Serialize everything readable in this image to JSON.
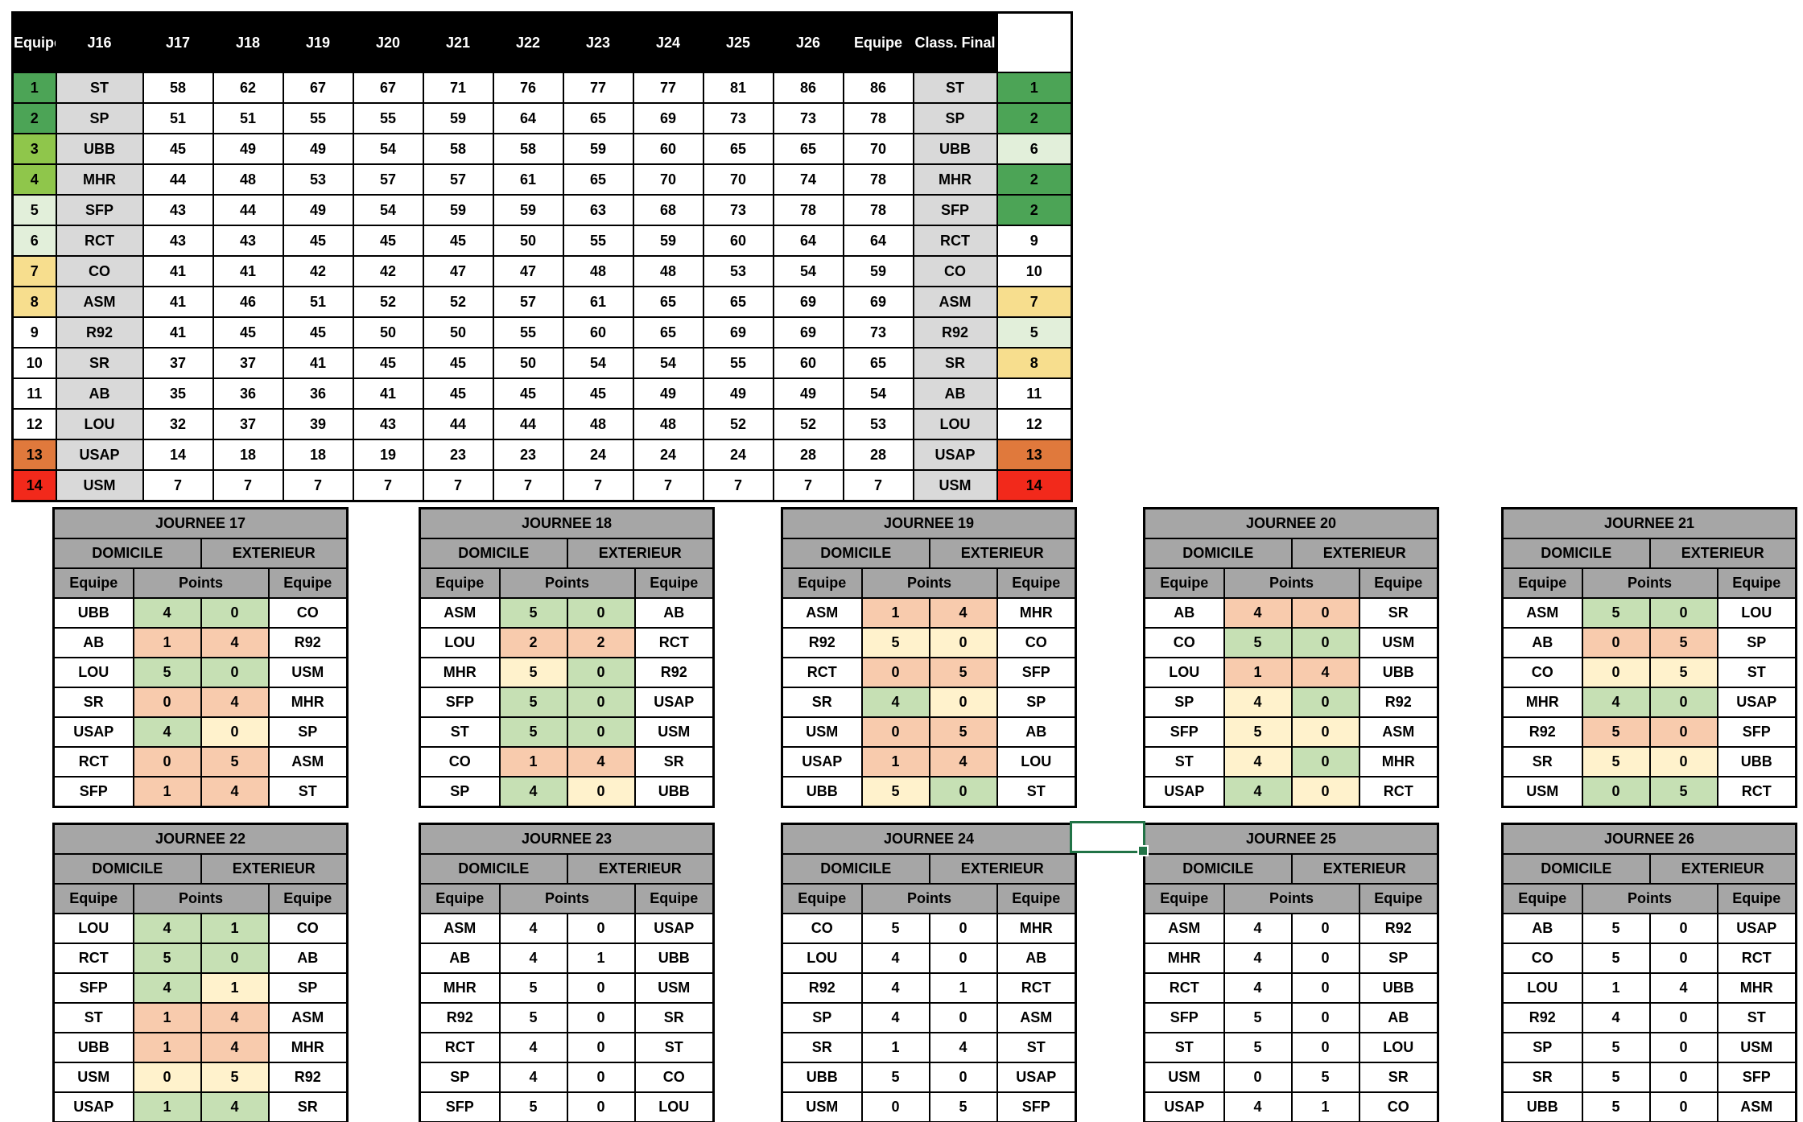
{
  "colors": {
    "rank_green": "#4CA456",
    "rank_lime": "#8FC64B",
    "rank_palegreen": "#E2EFDA",
    "rank_gold": "#F7DE8E",
    "rank_orange": "#E0793C",
    "rank_red": "#F2291B",
    "white": "#FFFFFF",
    "pts_green": "#C6E0B4",
    "pts_orange": "#F8CBAD",
    "pts_yellow": "#FFF2CC",
    "header_gray": "#A6A6A6",
    "team_gray": "#D9D9D9",
    "header_black": "#000000",
    "selection_green": "#217346"
  },
  "labels": {
    "domicile": "DOMICILE",
    "exterieur": "EXTERIEUR",
    "equipe": "Equipe",
    "points": "Points"
  },
  "main_table": {
    "header": [
      "Equipe",
      "J16",
      "J17",
      "J18",
      "J19",
      "J20",
      "J21",
      "J22",
      "J23",
      "J24",
      "J25",
      "J26",
      "Equipe",
      "Class. Final"
    ],
    "rows": [
      {
        "rank": "1",
        "team": "ST",
        "scores": [
          "58",
          "62",
          "67",
          "67",
          "71",
          "76",
          "77",
          "77",
          "81",
          "86",
          "86"
        ],
        "team2": "ST",
        "final": "1",
        "rank_color": "rank_green",
        "final_color": "rank_green"
      },
      {
        "rank": "2",
        "team": "SP",
        "scores": [
          "51",
          "51",
          "55",
          "55",
          "59",
          "64",
          "65",
          "69",
          "73",
          "73",
          "78"
        ],
        "team2": "SP",
        "final": "2",
        "rank_color": "rank_green",
        "final_color": "rank_green"
      },
      {
        "rank": "3",
        "team": "UBB",
        "scores": [
          "45",
          "49",
          "49",
          "54",
          "58",
          "58",
          "59",
          "60",
          "65",
          "65",
          "70"
        ],
        "team2": "UBB",
        "final": "6",
        "rank_color": "rank_lime",
        "final_color": "rank_palegreen"
      },
      {
        "rank": "4",
        "team": "MHR",
        "scores": [
          "44",
          "48",
          "53",
          "57",
          "57",
          "61",
          "65",
          "70",
          "70",
          "74",
          "78"
        ],
        "team2": "MHR",
        "final": "2",
        "rank_color": "rank_lime",
        "final_color": "rank_green"
      },
      {
        "rank": "5",
        "team": "SFP",
        "scores": [
          "43",
          "44",
          "49",
          "54",
          "59",
          "59",
          "63",
          "68",
          "73",
          "78",
          "78"
        ],
        "team2": "SFP",
        "final": "2",
        "rank_color": "rank_palegreen",
        "final_color": "rank_green"
      },
      {
        "rank": "6",
        "team": "RCT",
        "scores": [
          "43",
          "43",
          "45",
          "45",
          "45",
          "50",
          "55",
          "59",
          "60",
          "64",
          "64"
        ],
        "team2": "RCT",
        "final": "9",
        "rank_color": "rank_palegreen",
        "final_color": "white"
      },
      {
        "rank": "7",
        "team": "CO",
        "scores": [
          "41",
          "41",
          "42",
          "42",
          "47",
          "47",
          "48",
          "48",
          "53",
          "54",
          "59"
        ],
        "team2": "CO",
        "final": "10",
        "rank_color": "rank_gold",
        "final_color": "white"
      },
      {
        "rank": "8",
        "team": "ASM",
        "scores": [
          "41",
          "46",
          "51",
          "52",
          "52",
          "57",
          "61",
          "65",
          "65",
          "69",
          "69"
        ],
        "team2": "ASM",
        "final": "7",
        "rank_color": "rank_gold",
        "final_color": "rank_gold"
      },
      {
        "rank": "9",
        "team": "R92",
        "scores": [
          "41",
          "45",
          "45",
          "50",
          "50",
          "55",
          "60",
          "65",
          "69",
          "69",
          "73"
        ],
        "team2": "R92",
        "final": "5",
        "rank_color": "white",
        "final_color": "rank_palegreen"
      },
      {
        "rank": "10",
        "team": "SR",
        "scores": [
          "37",
          "37",
          "41",
          "45",
          "45",
          "50",
          "54",
          "54",
          "55",
          "60",
          "65"
        ],
        "team2": "SR",
        "final": "8",
        "rank_color": "white",
        "final_color": "rank_gold"
      },
      {
        "rank": "11",
        "team": "AB",
        "scores": [
          "35",
          "36",
          "36",
          "41",
          "45",
          "45",
          "45",
          "49",
          "49",
          "49",
          "54"
        ],
        "team2": "AB",
        "final": "11",
        "rank_color": "white",
        "final_color": "white"
      },
      {
        "rank": "12",
        "team": "LOU",
        "scores": [
          "32",
          "37",
          "39",
          "43",
          "44",
          "44",
          "48",
          "48",
          "52",
          "52",
          "53"
        ],
        "team2": "LOU",
        "final": "12",
        "rank_color": "white",
        "final_color": "white"
      },
      {
        "rank": "13",
        "team": "USAP",
        "scores": [
          "14",
          "18",
          "18",
          "19",
          "23",
          "23",
          "24",
          "24",
          "24",
          "28",
          "28"
        ],
        "team2": "USAP",
        "final": "13",
        "rank_color": "rank_orange",
        "final_color": "rank_orange"
      },
      {
        "rank": "14",
        "team": "USM",
        "scores": [
          "7",
          "7",
          "7",
          "7",
          "7",
          "7",
          "7",
          "7",
          "7",
          "7",
          "7"
        ],
        "team2": "USM",
        "final": "14",
        "rank_color": "rank_red",
        "final_color": "rank_red"
      }
    ]
  },
  "journee_tables": [
    {
      "title": "JOURNEE 17",
      "matches": [
        {
          "home": "UBB",
          "home_pts": "4",
          "away_pts": "0",
          "away": "CO",
          "home_color": "pts_green",
          "away_color": "pts_green"
        },
        {
          "home": "AB",
          "home_pts": "1",
          "away_pts": "4",
          "away": "R92",
          "home_color": "pts_orange",
          "away_color": "pts_orange"
        },
        {
          "home": "LOU",
          "home_pts": "5",
          "away_pts": "0",
          "away": "USM",
          "home_color": "pts_green",
          "away_color": "pts_green"
        },
        {
          "home": "SR",
          "home_pts": "0",
          "away_pts": "4",
          "away": "MHR",
          "home_color": "pts_orange",
          "away_color": "pts_orange"
        },
        {
          "home": "USAP",
          "home_pts": "4",
          "away_pts": "0",
          "away": "SP",
          "home_color": "pts_green",
          "away_color": "pts_yellow"
        },
        {
          "home": "RCT",
          "home_pts": "0",
          "away_pts": "5",
          "away": "ASM",
          "home_color": "pts_orange",
          "away_color": "pts_orange"
        },
        {
          "home": "SFP",
          "home_pts": "1",
          "away_pts": "4",
          "away": "ST",
          "home_color": "pts_orange",
          "away_color": "pts_orange"
        }
      ]
    },
    {
      "title": "JOURNEE 18",
      "matches": [
        {
          "home": "ASM",
          "home_pts": "5",
          "away_pts": "0",
          "away": "AB",
          "home_color": "pts_green",
          "away_color": "pts_green"
        },
        {
          "home": "LOU",
          "home_pts": "2",
          "away_pts": "2",
          "away": "RCT",
          "home_color": "pts_orange",
          "away_color": "pts_orange"
        },
        {
          "home": "MHR",
          "home_pts": "5",
          "away_pts": "0",
          "away": "R92",
          "home_color": "pts_yellow",
          "away_color": "pts_green"
        },
        {
          "home": "SFP",
          "home_pts": "5",
          "away_pts": "0",
          "away": "USAP",
          "home_color": "pts_green",
          "away_color": "pts_green"
        },
        {
          "home": "ST",
          "home_pts": "5",
          "away_pts": "0",
          "away": "USM",
          "home_color": "pts_green",
          "away_color": "pts_green"
        },
        {
          "home": "CO",
          "home_pts": "1",
          "away_pts": "4",
          "away": "SR",
          "home_color": "pts_orange",
          "away_color": "pts_orange"
        },
        {
          "home": "SP",
          "home_pts": "4",
          "away_pts": "0",
          "away": "UBB",
          "home_color": "pts_green",
          "away_color": "pts_yellow"
        }
      ]
    },
    {
      "title": "JOURNEE 19",
      "matches": [
        {
          "home": "ASM",
          "home_pts": "1",
          "away_pts": "4",
          "away": "MHR",
          "home_color": "pts_orange",
          "away_color": "pts_orange"
        },
        {
          "home": "R92",
          "home_pts": "5",
          "away_pts": "0",
          "away": "CO",
          "home_color": "pts_yellow",
          "away_color": "pts_yellow"
        },
        {
          "home": "RCT",
          "home_pts": "0",
          "away_pts": "5",
          "away": "SFP",
          "home_color": "pts_orange",
          "away_color": "pts_orange"
        },
        {
          "home": "SR",
          "home_pts": "4",
          "away_pts": "0",
          "away": "SP",
          "home_color": "pts_green",
          "away_color": "pts_yellow"
        },
        {
          "home": "USM",
          "home_pts": "0",
          "away_pts": "5",
          "away": "AB",
          "home_color": "pts_orange",
          "away_color": "pts_orange"
        },
        {
          "home": "USAP",
          "home_pts": "1",
          "away_pts": "4",
          "away": "LOU",
          "home_color": "pts_orange",
          "away_color": "pts_orange"
        },
        {
          "home": "UBB",
          "home_pts": "5",
          "away_pts": "0",
          "away": "ST",
          "home_color": "pts_yellow",
          "away_color": "pts_green"
        }
      ]
    },
    {
      "title": "JOURNEE 20",
      "matches": [
        {
          "home": "AB",
          "home_pts": "4",
          "away_pts": "0",
          "away": "SR",
          "home_color": "pts_orange",
          "away_color": "pts_orange"
        },
        {
          "home": "CO",
          "home_pts": "5",
          "away_pts": "0",
          "away": "USM",
          "home_color": "pts_green",
          "away_color": "pts_green"
        },
        {
          "home": "LOU",
          "home_pts": "1",
          "away_pts": "4",
          "away": "UBB",
          "home_color": "pts_orange",
          "away_color": "pts_orange"
        },
        {
          "home": "SP",
          "home_pts": "4",
          "away_pts": "0",
          "away": "R92",
          "home_color": "pts_yellow",
          "away_color": "pts_green"
        },
        {
          "home": "SFP",
          "home_pts": "5",
          "away_pts": "0",
          "away": "ASM",
          "home_color": "pts_yellow",
          "away_color": "pts_yellow"
        },
        {
          "home": "ST",
          "home_pts": "4",
          "away_pts": "0",
          "away": "MHR",
          "home_color": "pts_yellow",
          "away_color": "pts_green"
        },
        {
          "home": "USAP",
          "home_pts": "4",
          "away_pts": "0",
          "away": "RCT",
          "home_color": "pts_green",
          "away_color": "pts_yellow"
        }
      ]
    },
    {
      "title": "JOURNEE 21",
      "matches": [
        {
          "home": "ASM",
          "home_pts": "5",
          "away_pts": "0",
          "away": "LOU",
          "home_color": "pts_green",
          "away_color": "pts_green"
        },
        {
          "home": "AB",
          "home_pts": "0",
          "away_pts": "5",
          "away": "SP",
          "home_color": "pts_orange",
          "away_color": "pts_orange"
        },
        {
          "home": "CO",
          "home_pts": "0",
          "away_pts": "5",
          "away": "ST",
          "home_color": "pts_yellow",
          "away_color": "pts_yellow"
        },
        {
          "home": "MHR",
          "home_pts": "4",
          "away_pts": "0",
          "away": "USAP",
          "home_color": "pts_green",
          "away_color": "pts_green"
        },
        {
          "home": "R92",
          "home_pts": "5",
          "away_pts": "0",
          "away": "SFP",
          "home_color": "pts_orange",
          "away_color": "pts_orange"
        },
        {
          "home": "SR",
          "home_pts": "5",
          "away_pts": "0",
          "away": "UBB",
          "home_color": "pts_yellow",
          "away_color": "pts_yellow"
        },
        {
          "home": "USM",
          "home_pts": "0",
          "away_pts": "5",
          "away": "RCT",
          "home_color": "pts_green",
          "away_color": "pts_green"
        }
      ]
    },
    {
      "title": "JOURNEE 22",
      "matches": [
        {
          "home": "LOU",
          "home_pts": "4",
          "away_pts": "1",
          "away": "CO",
          "home_color": "pts_green",
          "away_color": "pts_green"
        },
        {
          "home": "RCT",
          "home_pts": "5",
          "away_pts": "0",
          "away": "AB",
          "home_color": "pts_green",
          "away_color": "pts_green"
        },
        {
          "home": "SFP",
          "home_pts": "4",
          "away_pts": "1",
          "away": "SP",
          "home_color": "pts_green",
          "away_color": "pts_yellow"
        },
        {
          "home": "ST",
          "home_pts": "1",
          "away_pts": "4",
          "away": "ASM",
          "home_color": "pts_orange",
          "away_color": "pts_orange"
        },
        {
          "home": "UBB",
          "home_pts": "1",
          "away_pts": "4",
          "away": "MHR",
          "home_color": "pts_orange",
          "away_color": "pts_orange"
        },
        {
          "home": "USM",
          "home_pts": "0",
          "away_pts": "5",
          "away": "R92",
          "home_color": "pts_yellow",
          "away_color": "pts_yellow"
        },
        {
          "home": "USAP",
          "home_pts": "1",
          "away_pts": "4",
          "away": "SR",
          "home_color": "pts_green",
          "away_color": "pts_green"
        }
      ]
    },
    {
      "title": "JOURNEE 23",
      "matches": [
        {
          "home": "ASM",
          "home_pts": "4",
          "away_pts": "0",
          "away": "USAP"
        },
        {
          "home": "AB",
          "home_pts": "4",
          "away_pts": "1",
          "away": "UBB"
        },
        {
          "home": "MHR",
          "home_pts": "5",
          "away_pts": "0",
          "away": "USM"
        },
        {
          "home": "R92",
          "home_pts": "5",
          "away_pts": "0",
          "away": "SR"
        },
        {
          "home": "RCT",
          "home_pts": "4",
          "away_pts": "0",
          "away": "ST"
        },
        {
          "home": "SP",
          "home_pts": "4",
          "away_pts": "0",
          "away": "CO"
        },
        {
          "home": "SFP",
          "home_pts": "5",
          "away_pts": "0",
          "away": "LOU"
        }
      ]
    },
    {
      "title": "JOURNEE 24",
      "matches": [
        {
          "home": "CO",
          "home_pts": "5",
          "away_pts": "0",
          "away": "MHR"
        },
        {
          "home": "LOU",
          "home_pts": "4",
          "away_pts": "0",
          "away": "AB"
        },
        {
          "home": "R92",
          "home_pts": "4",
          "away_pts": "1",
          "away": "RCT"
        },
        {
          "home": "SP",
          "home_pts": "4",
          "away_pts": "0",
          "away": "ASM"
        },
        {
          "home": "SR",
          "home_pts": "1",
          "away_pts": "4",
          "away": "ST"
        },
        {
          "home": "UBB",
          "home_pts": "5",
          "away_pts": "0",
          "away": "USAP"
        },
        {
          "home": "USM",
          "home_pts": "0",
          "away_pts": "5",
          "away": "SFP"
        }
      ]
    },
    {
      "title": "JOURNEE 25",
      "matches": [
        {
          "home": "ASM",
          "home_pts": "4",
          "away_pts": "0",
          "away": "R92"
        },
        {
          "home": "MHR",
          "home_pts": "4",
          "away_pts": "0",
          "away": "SP"
        },
        {
          "home": "RCT",
          "home_pts": "4",
          "away_pts": "0",
          "away": "UBB"
        },
        {
          "home": "SFP",
          "home_pts": "5",
          "away_pts": "0",
          "away": "AB"
        },
        {
          "home": "ST",
          "home_pts": "5",
          "away_pts": "0",
          "away": "LOU"
        },
        {
          "home": "USM",
          "home_pts": "0",
          "away_pts": "5",
          "away": "SR"
        },
        {
          "home": "USAP",
          "home_pts": "4",
          "away_pts": "1",
          "away": "CO"
        }
      ]
    },
    {
      "title": "JOURNEE 26",
      "matches": [
        {
          "home": "AB",
          "home_pts": "5",
          "away_pts": "0",
          "away": "USAP"
        },
        {
          "home": "CO",
          "home_pts": "5",
          "away_pts": "0",
          "away": "RCT"
        },
        {
          "home": "LOU",
          "home_pts": "1",
          "away_pts": "4",
          "away": "MHR"
        },
        {
          "home": "R92",
          "home_pts": "4",
          "away_pts": "0",
          "away": "ST"
        },
        {
          "home": "SP",
          "home_pts": "5",
          "away_pts": "0",
          "away": "USM"
        },
        {
          "home": "SR",
          "home_pts": "5",
          "away_pts": "0",
          "away": "SFP"
        },
        {
          "home": "UBB",
          "home_pts": "5",
          "away_pts": "0",
          "away": "ASM"
        }
      ]
    }
  ]
}
